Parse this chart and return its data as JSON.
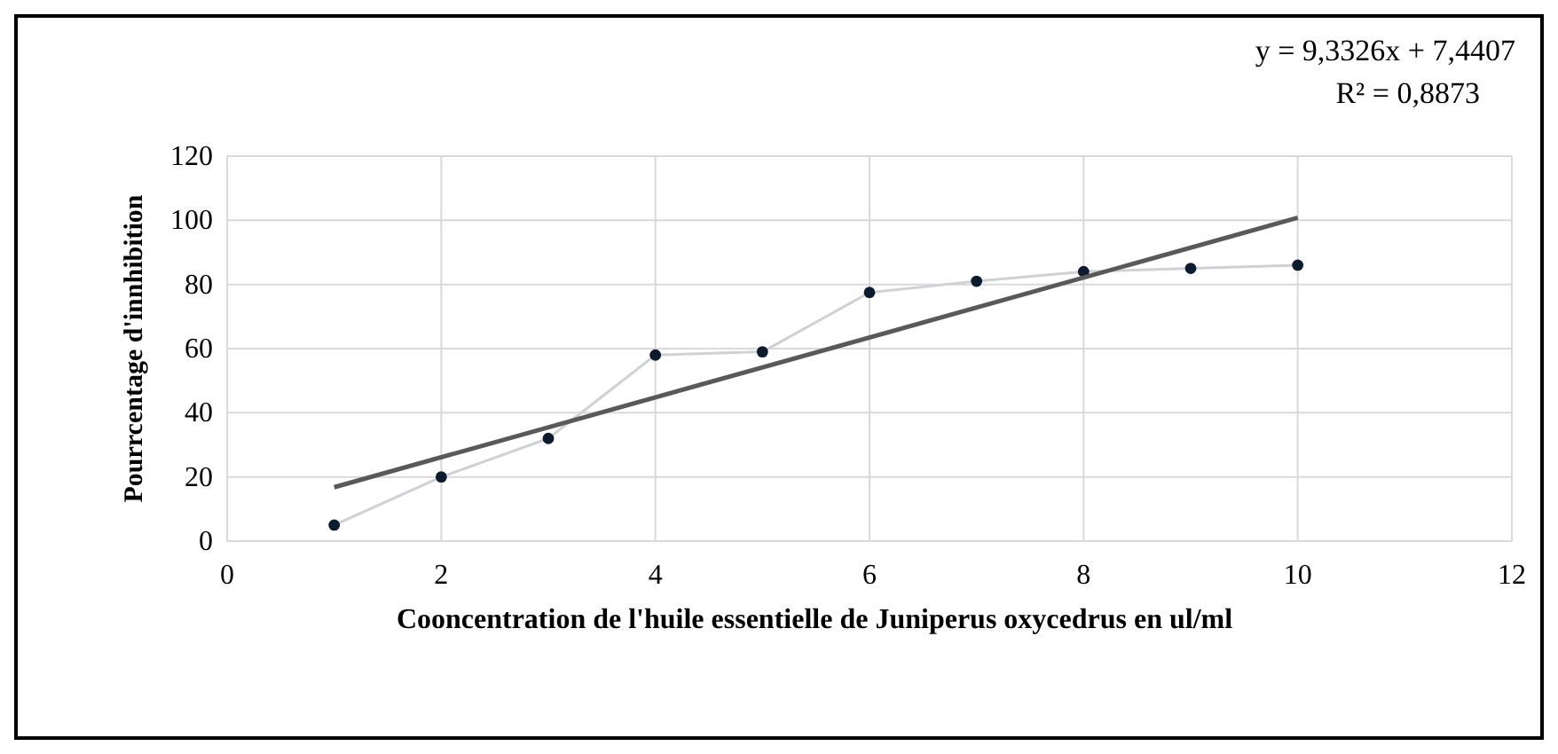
{
  "chart_data": {
    "type": "line",
    "xlabel": "Cooncentration  de l'huile essentielle de  Juniperus oxycedrus en ul/ml",
    "ylabel": "Pourrcentage d'innhibition",
    "annotations": [
      "y = 9,3326x + 7,4407",
      "R² = 0,8873"
    ],
    "xlim": [
      0,
      12
    ],
    "xticks": [
      0,
      2,
      4,
      6,
      8,
      10,
      12
    ],
    "ylim": [
      0,
      120
    ],
    "yticks": [
      0,
      20,
      40,
      60,
      80,
      100,
      120
    ],
    "grid": true,
    "series": [
      {
        "color": "#0d1b2e",
        "marker": "circle",
        "x": [
          1,
          2,
          3,
          4,
          5,
          6,
          7,
          8,
          9,
          10
        ],
        "values": [
          5,
          20,
          32,
          58,
          59,
          77.5,
          81,
          84,
          85,
          86
        ]
      },
      {
        "type": "line",
        "color": "#595959",
        "marker": "none",
        "x": [
          1,
          10
        ],
        "values": [
          16.8,
          100.8
        ]
      }
    ]
  }
}
